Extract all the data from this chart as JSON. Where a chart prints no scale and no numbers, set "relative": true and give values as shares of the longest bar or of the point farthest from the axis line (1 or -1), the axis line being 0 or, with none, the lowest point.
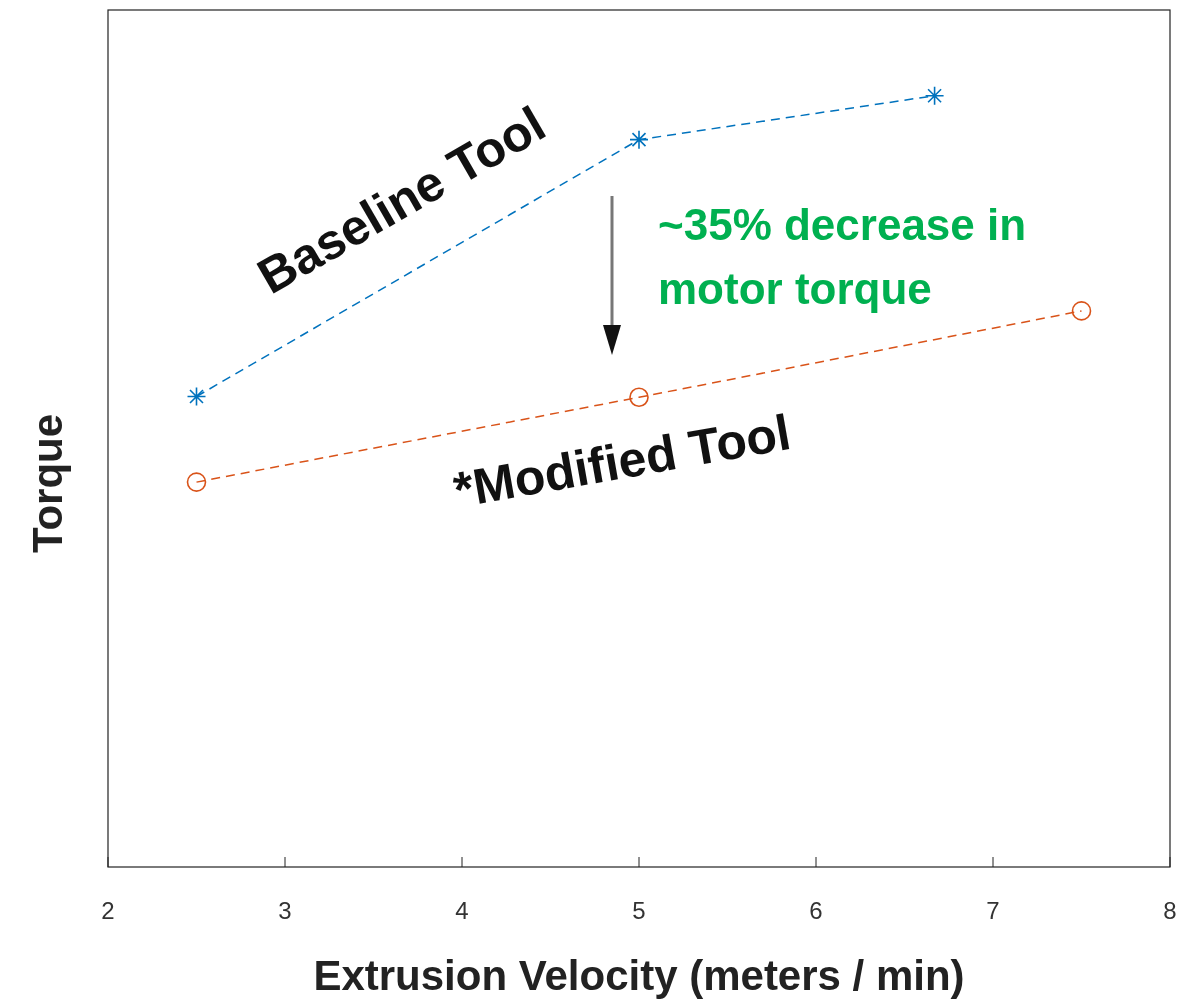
{
  "chart_data": {
    "type": "line",
    "relative": true,
    "xlabel": "Extrusion Velocity (meters / min)",
    "ylabel": "Torque",
    "xlim": [
      2,
      8
    ],
    "xticks": [
      2,
      3,
      4,
      5,
      6,
      7,
      8
    ],
    "line_style": "dashed",
    "grid": false,
    "series": [
      {
        "name": "Baseline Tool",
        "color": "#0072bd",
        "marker": "cross",
        "x": [
          2.5,
          5,
          6.67
        ],
        "values": [
          0.61,
          0.943,
          1
        ]
      },
      {
        "name": "*Modified Tool",
        "color": "#d95319",
        "marker": "circle",
        "x": [
          2.5,
          5,
          7.5
        ],
        "values": [
          0.499,
          0.609,
          0.721
        ]
      }
    ],
    "annotations": [
      "~35% decrease in motor torque"
    ]
  }
}
